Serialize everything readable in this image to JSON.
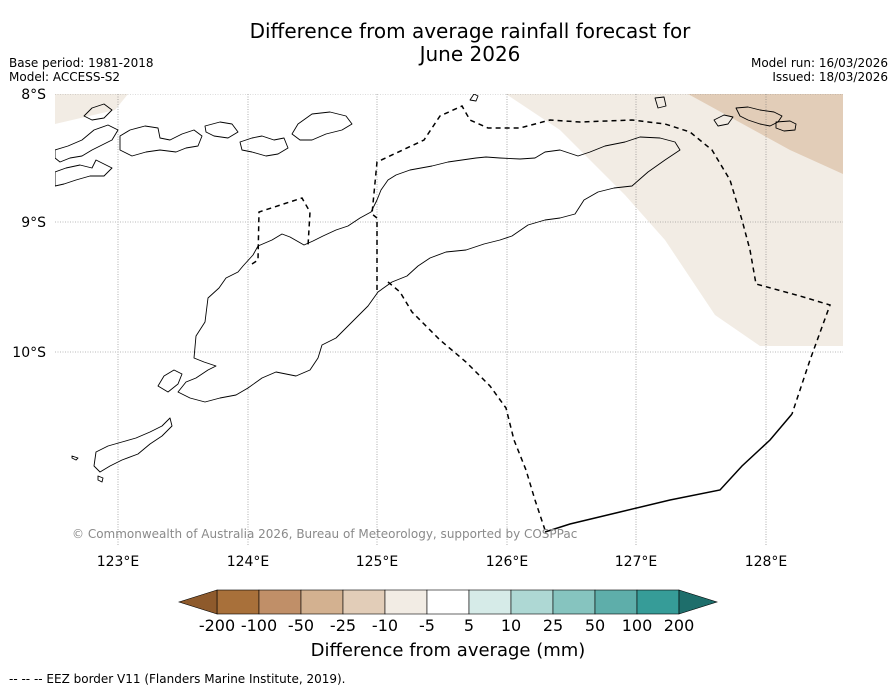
{
  "title": {
    "line1": "Difference from average rainfall forecast for",
    "line2": "June 2026"
  },
  "meta": {
    "base_period": "Base period: 1981-2018",
    "model": "Model: ACCESS-S2",
    "model_run": "Model run: 16/03/2026",
    "issued": "Issued: 18/03/2026"
  },
  "map": {
    "lat_labels": [
      "8°S",
      "9°S",
      "10°S"
    ],
    "lon_labels": [
      "123°E",
      "124°E",
      "125°E",
      "126°E",
      "127°E",
      "128°E"
    ],
    "copyright": "© Commonwealth of Australia 2026, Bureau of Meteorology, supported by COSPPac"
  },
  "colorbar": {
    "tick_labels": [
      "-200",
      "-100",
      "-50",
      "-25",
      "-10",
      "-5",
      "5",
      "10",
      "25",
      "50",
      "100",
      "200"
    ],
    "colors": [
      "#a8703a",
      "#c08f68",
      "#d3b190",
      "#e2cdb8",
      "#f2ece4",
      "#ffffff",
      "#d6ebe8",
      "#aed8d4",
      "#86c4bf",
      "#5eaeaa",
      "#369c98",
      "#1f7f7b"
    ],
    "low_extend_color": "#8e5a2c",
    "high_extend_color": "#1e6e6b",
    "title": "Difference from average (mm)"
  },
  "legend": {
    "eez": "--  --  -- EEZ border V11 (Flanders Marine Institute, 2019)."
  }
}
